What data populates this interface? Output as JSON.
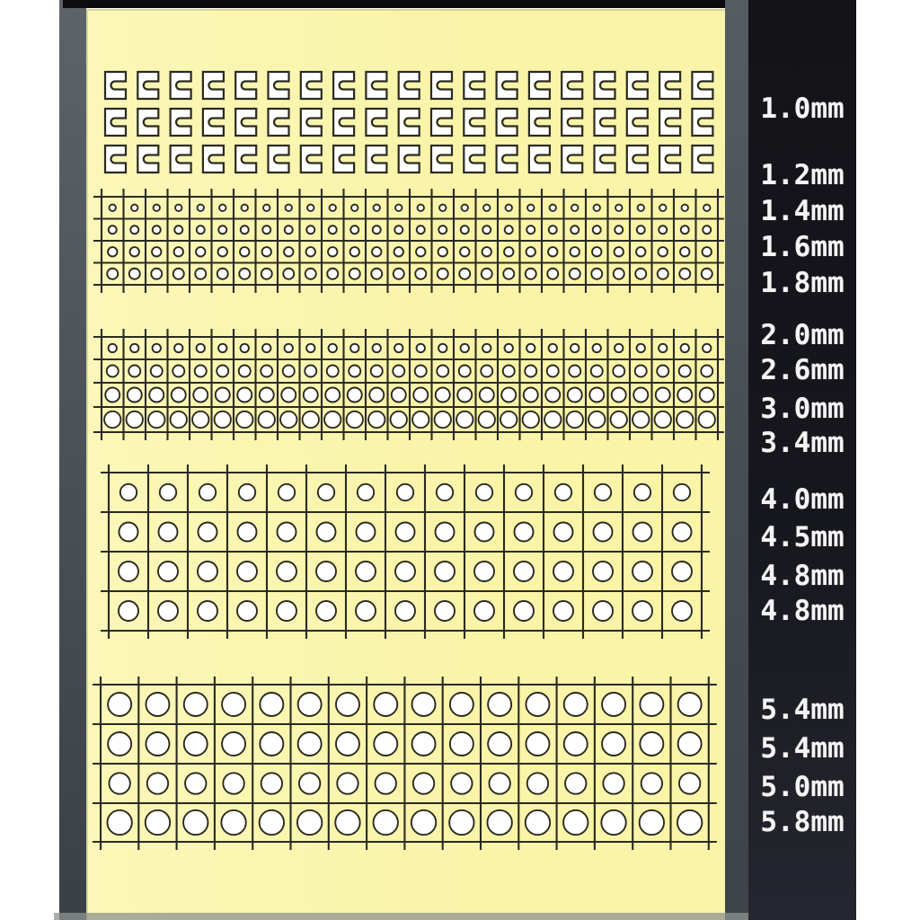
{
  "panel": {
    "labels": [
      {
        "text": "1.0mm"
      },
      {
        "text": "1.2mm"
      },
      {
        "text": "1.4mm"
      },
      {
        "text": "1.6mm"
      },
      {
        "text": "1.8mm"
      },
      {
        "text": "2.0mm"
      },
      {
        "text": "2.6mm"
      },
      {
        "text": "3.0mm"
      },
      {
        "text": "3.4mm"
      },
      {
        "text": "4.0mm"
      },
      {
        "text": "4.5mm"
      },
      {
        "text": "4.8mm"
      },
      {
        "text": "4.8mm"
      },
      {
        "text": "5.4mm"
      },
      {
        "text": "5.4mm"
      },
      {
        "text": "5.0mm"
      },
      {
        "text": "5.8mm"
      }
    ]
  },
  "sheet": {
    "clip_section": {
      "shape": "c-clip-notch-right",
      "rows": 3,
      "columns": 19,
      "size": "1.0mm"
    },
    "grids": [
      {
        "columns": 28,
        "rows": [
          {
            "size": "1.2mm"
          },
          {
            "size": "1.4mm"
          },
          {
            "size": "1.6mm"
          },
          {
            "size": "1.8mm"
          }
        ]
      },
      {
        "columns": 28,
        "rows": [
          {
            "size": "2.0mm"
          },
          {
            "size": "2.6mm"
          },
          {
            "size": "3.0mm"
          },
          {
            "size": "3.4mm"
          }
        ]
      },
      {
        "columns": 15,
        "rows": [
          {
            "size": "4.0mm"
          },
          {
            "size": "4.5mm"
          },
          {
            "size": "4.8mm"
          },
          {
            "size": "4.8mm"
          }
        ]
      },
      {
        "columns": 16,
        "rows": [
          {
            "size": "5.4mm"
          },
          {
            "size": "5.4mm"
          },
          {
            "size": "5.0mm"
          },
          {
            "size": "5.8mm"
          }
        ]
      }
    ]
  },
  "colors": {
    "sheet_cream": "#f9f4a8",
    "sheet_cream_highlight": "#fbf7b8",
    "artwork_outline": "#2b2a20",
    "shape_fill": "#ffffff",
    "panel_black": "#16161d",
    "label_white": "#f4f4f4",
    "edge_gray": "#4c5357"
  }
}
